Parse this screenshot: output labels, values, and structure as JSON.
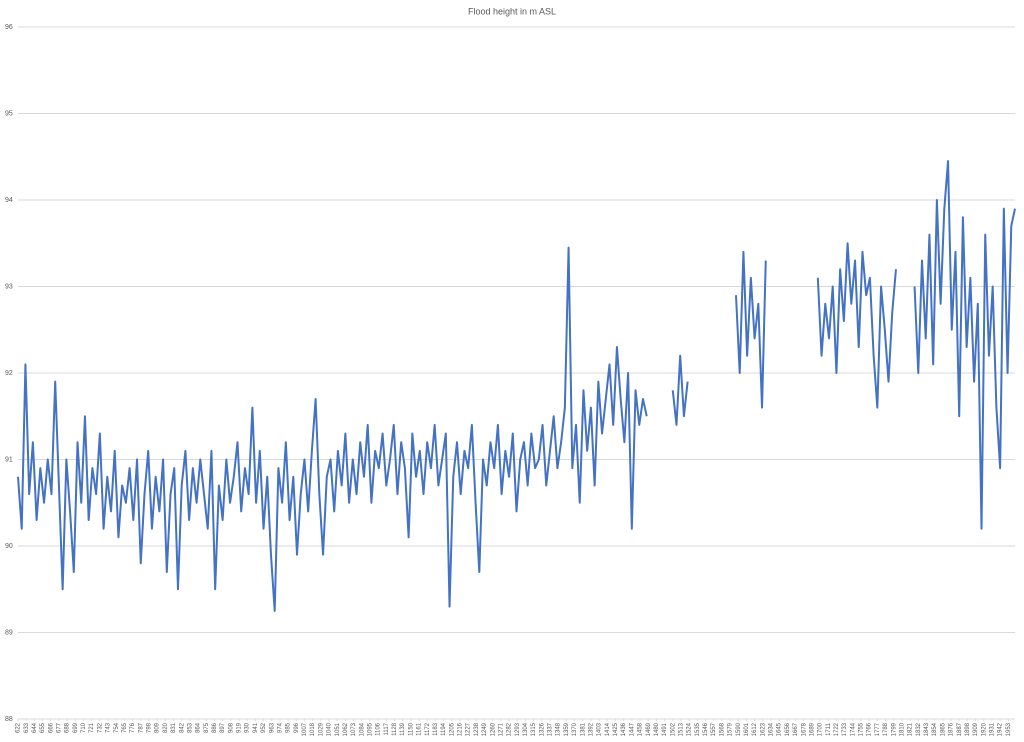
{
  "chart_data": {
    "type": "line",
    "title": "Flood height in m ASL",
    "x": [
      622,
      627,
      632,
      637,
      642,
      647,
      652,
      657,
      662,
      667,
      672,
      677,
      682,
      687,
      692,
      697,
      702,
      707,
      712,
      717,
      722,
      727,
      732,
      737,
      742,
      747,
      752,
      757,
      762,
      767,
      772,
      777,
      782,
      787,
      792,
      797,
      802,
      807,
      812,
      817,
      822,
      827,
      832,
      837,
      842,
      847,
      852,
      857,
      862,
      867,
      872,
      877,
      882,
      887,
      892,
      897,
      902,
      907,
      912,
      917,
      922,
      927,
      932,
      937,
      942,
      947,
      952,
      957,
      962,
      967,
      972,
      977,
      982,
      987,
      992,
      997,
      1002,
      1007,
      1012,
      1017,
      1022,
      1027,
      1032,
      1037,
      1042,
      1047,
      1052,
      1057,
      1062,
      1067,
      1072,
      1077,
      1082,
      1087,
      1092,
      1097,
      1102,
      1107,
      1112,
      1117,
      1122,
      1127,
      1132,
      1137,
      1142,
      1147,
      1152,
      1157,
      1162,
      1167,
      1172,
      1177,
      1182,
      1187,
      1192,
      1197,
      1202,
      1207,
      1212,
      1217,
      1222,
      1227,
      1232,
      1237,
      1242,
      1247,
      1252,
      1257,
      1262,
      1267,
      1272,
      1277,
      1282,
      1287,
      1292,
      1297,
      1302,
      1307,
      1312,
      1317,
      1322,
      1327,
      1332,
      1337,
      1342,
      1347,
      1352,
      1357,
      1362,
      1367,
      1372,
      1377,
      1382,
      1387,
      1392,
      1397,
      1402,
      1407,
      1412,
      1417,
      1422,
      1427,
      1432,
      1437,
      1442,
      1447,
      1452,
      1457,
      1462,
      1467,
      1472,
      1477,
      1482,
      1487,
      1492,
      1497,
      1502,
      1507,
      1512,
      1517,
      1522,
      1527,
      1532,
      1537,
      1542,
      1547,
      1552,
      1557,
      1562,
      1567,
      1572,
      1577,
      1582,
      1587,
      1592,
      1597,
      1602,
      1607,
      1612,
      1617,
      1622,
      1627,
      1632,
      1637,
      1642,
      1647,
      1652,
      1657,
      1662,
      1667,
      1672,
      1677,
      1682,
      1687,
      1692,
      1697,
      1702,
      1707,
      1712,
      1717,
      1722,
      1727,
      1732,
      1737,
      1742,
      1747,
      1752,
      1757,
      1762,
      1767,
      1772,
      1777,
      1782,
      1787,
      1792,
      1797,
      1802,
      1807,
      1812,
      1817,
      1822,
      1827,
      1832,
      1837,
      1842,
      1847,
      1852,
      1857,
      1862,
      1867,
      1872,
      1877,
      1882,
      1887,
      1892,
      1897,
      1902,
      1907,
      1912,
      1917,
      1922,
      1927,
      1932,
      1937,
      1942,
      1947,
      1952,
      1957,
      1962
    ],
    "series": [
      {
        "color": "#4472c4",
        "values": [
          90.8,
          90.2,
          92.1,
          90.6,
          91.2,
          90.3,
          90.9,
          90.5,
          91.0,
          90.6,
          91.9,
          90.7,
          89.5,
          91.0,
          90.4,
          89.7,
          91.2,
          90.5,
          91.5,
          90.3,
          90.9,
          90.6,
          91.3,
          90.2,
          90.8,
          90.4,
          91.1,
          90.1,
          90.7,
          90.5,
          90.9,
          90.3,
          91.0,
          89.8,
          90.6,
          91.1,
          90.2,
          90.8,
          90.4,
          91.0,
          89.7,
          90.6,
          90.9,
          89.5,
          90.7,
          91.1,
          90.3,
          90.9,
          90.5,
          91.0,
          90.6,
          90.2,
          91.1,
          89.5,
          90.7,
          90.3,
          91.0,
          90.5,
          90.8,
          91.2,
          90.4,
          90.9,
          90.6,
          91.6,
          90.5,
          91.1,
          90.2,
          90.8,
          89.9,
          89.25,
          90.9,
          90.5,
          91.2,
          90.3,
          90.8,
          89.9,
          90.6,
          91.0,
          90.4,
          91.1,
          91.7,
          90.6,
          89.9,
          90.8,
          91.0,
          90.4,
          91.1,
          90.7,
          91.3,
          90.5,
          91.0,
          90.6,
          91.2,
          90.8,
          91.4,
          90.5,
          91.1,
          90.9,
          91.3,
          90.7,
          91.0,
          91.4,
          90.6,
          91.2,
          90.9,
          90.1,
          91.3,
          90.8,
          91.1,
          90.6,
          91.2,
          90.9,
          91.4,
          90.7,
          91.0,
          91.3,
          89.3,
          90.8,
          91.2,
          90.6,
          91.1,
          90.9,
          91.4,
          90.5,
          89.7,
          91.0,
          90.7,
          91.2,
          90.9,
          91.4,
          90.6,
          91.1,
          90.8,
          91.3,
          90.4,
          91.0,
          91.2,
          90.7,
          91.3,
          90.9,
          91.0,
          91.4,
          90.7,
          91.1,
          91.5,
          90.9,
          91.2,
          91.6,
          93.45,
          90.9,
          91.4,
          90.5,
          91.8,
          91.1,
          91.6,
          90.7,
          91.9,
          91.3,
          91.7,
          92.1,
          91.4,
          92.3,
          91.7,
          91.2,
          92.0,
          90.2,
          91.8,
          91.4,
          91.7,
          91.5,
          null,
          null,
          null,
          null,
          null,
          null,
          91.8,
          91.4,
          92.2,
          91.5,
          91.9,
          null,
          null,
          null,
          null,
          null,
          null,
          null,
          null,
          null,
          null,
          null,
          null,
          92.9,
          92.0,
          93.4,
          92.2,
          93.1,
          92.4,
          92.8,
          91.6,
          93.3,
          null,
          null,
          null,
          null,
          null,
          null,
          null,
          null,
          null,
          null,
          null,
          null,
          null,
          93.1,
          92.2,
          92.8,
          92.4,
          93.0,
          92.0,
          93.2,
          92.6,
          93.5,
          92.8,
          93.3,
          92.3,
          93.4,
          92.9,
          93.1,
          92.2,
          91.6,
          93.0,
          92.5,
          91.9,
          92.7,
          93.2,
          null,
          null,
          null,
          null,
          93.0,
          92.0,
          93.3,
          92.4,
          93.6,
          92.1,
          94.0,
          92.8,
          93.9,
          94.45,
          92.5,
          93.4,
          91.5,
          93.8,
          92.3,
          93.1,
          91.9,
          92.8,
          90.2,
          93.6,
          92.2,
          93.0,
          91.6,
          90.9,
          93.9,
          92.0,
          93.7,
          93.9
        ]
      }
    ],
    "xlim": [
      622,
      1962
    ],
    "xticks": [
      622,
      633,
      644,
      655,
      666,
      677,
      688,
      699,
      710,
      721,
      732,
      743,
      754,
      765,
      776,
      787,
      798,
      809,
      820,
      831,
      842,
      853,
      864,
      875,
      886,
      897,
      908,
      919,
      930,
      941,
      952,
      963,
      974,
      985,
      996,
      1007,
      1018,
      1029,
      1040,
      1051,
      1062,
      1073,
      1084,
      1095,
      1106,
      1117,
      1128,
      1139,
      1150,
      1161,
      1172,
      1183,
      1194,
      1205,
      1216,
      1227,
      1238,
      1249,
      1260,
      1271,
      1282,
      1293,
      1304,
      1315,
      1326,
      1337,
      1348,
      1359,
      1370,
      1381,
      1392,
      1403,
      1414,
      1425,
      1436,
      1447,
      1458,
      1469,
      1480,
      1491,
      1502,
      1513,
      1524,
      1535,
      1546,
      1557,
      1568,
      1579,
      1590,
      1601,
      1612,
      1623,
      1634,
      1645,
      1656,
      1667,
      1678,
      1689,
      1700,
      1711,
      1722,
      1733,
      1744,
      1755,
      1766,
      1777,
      1788,
      1799,
      1810,
      1821,
      1832,
      1843,
      1854,
      1865,
      1876,
      1887,
      1898,
      1909,
      1920,
      1931,
      1942,
      1953
    ],
    "ylim": [
      88,
      96
    ],
    "yticks": [
      88,
      89,
      90,
      91,
      92,
      93,
      94,
      95,
      96
    ],
    "grid": true
  }
}
